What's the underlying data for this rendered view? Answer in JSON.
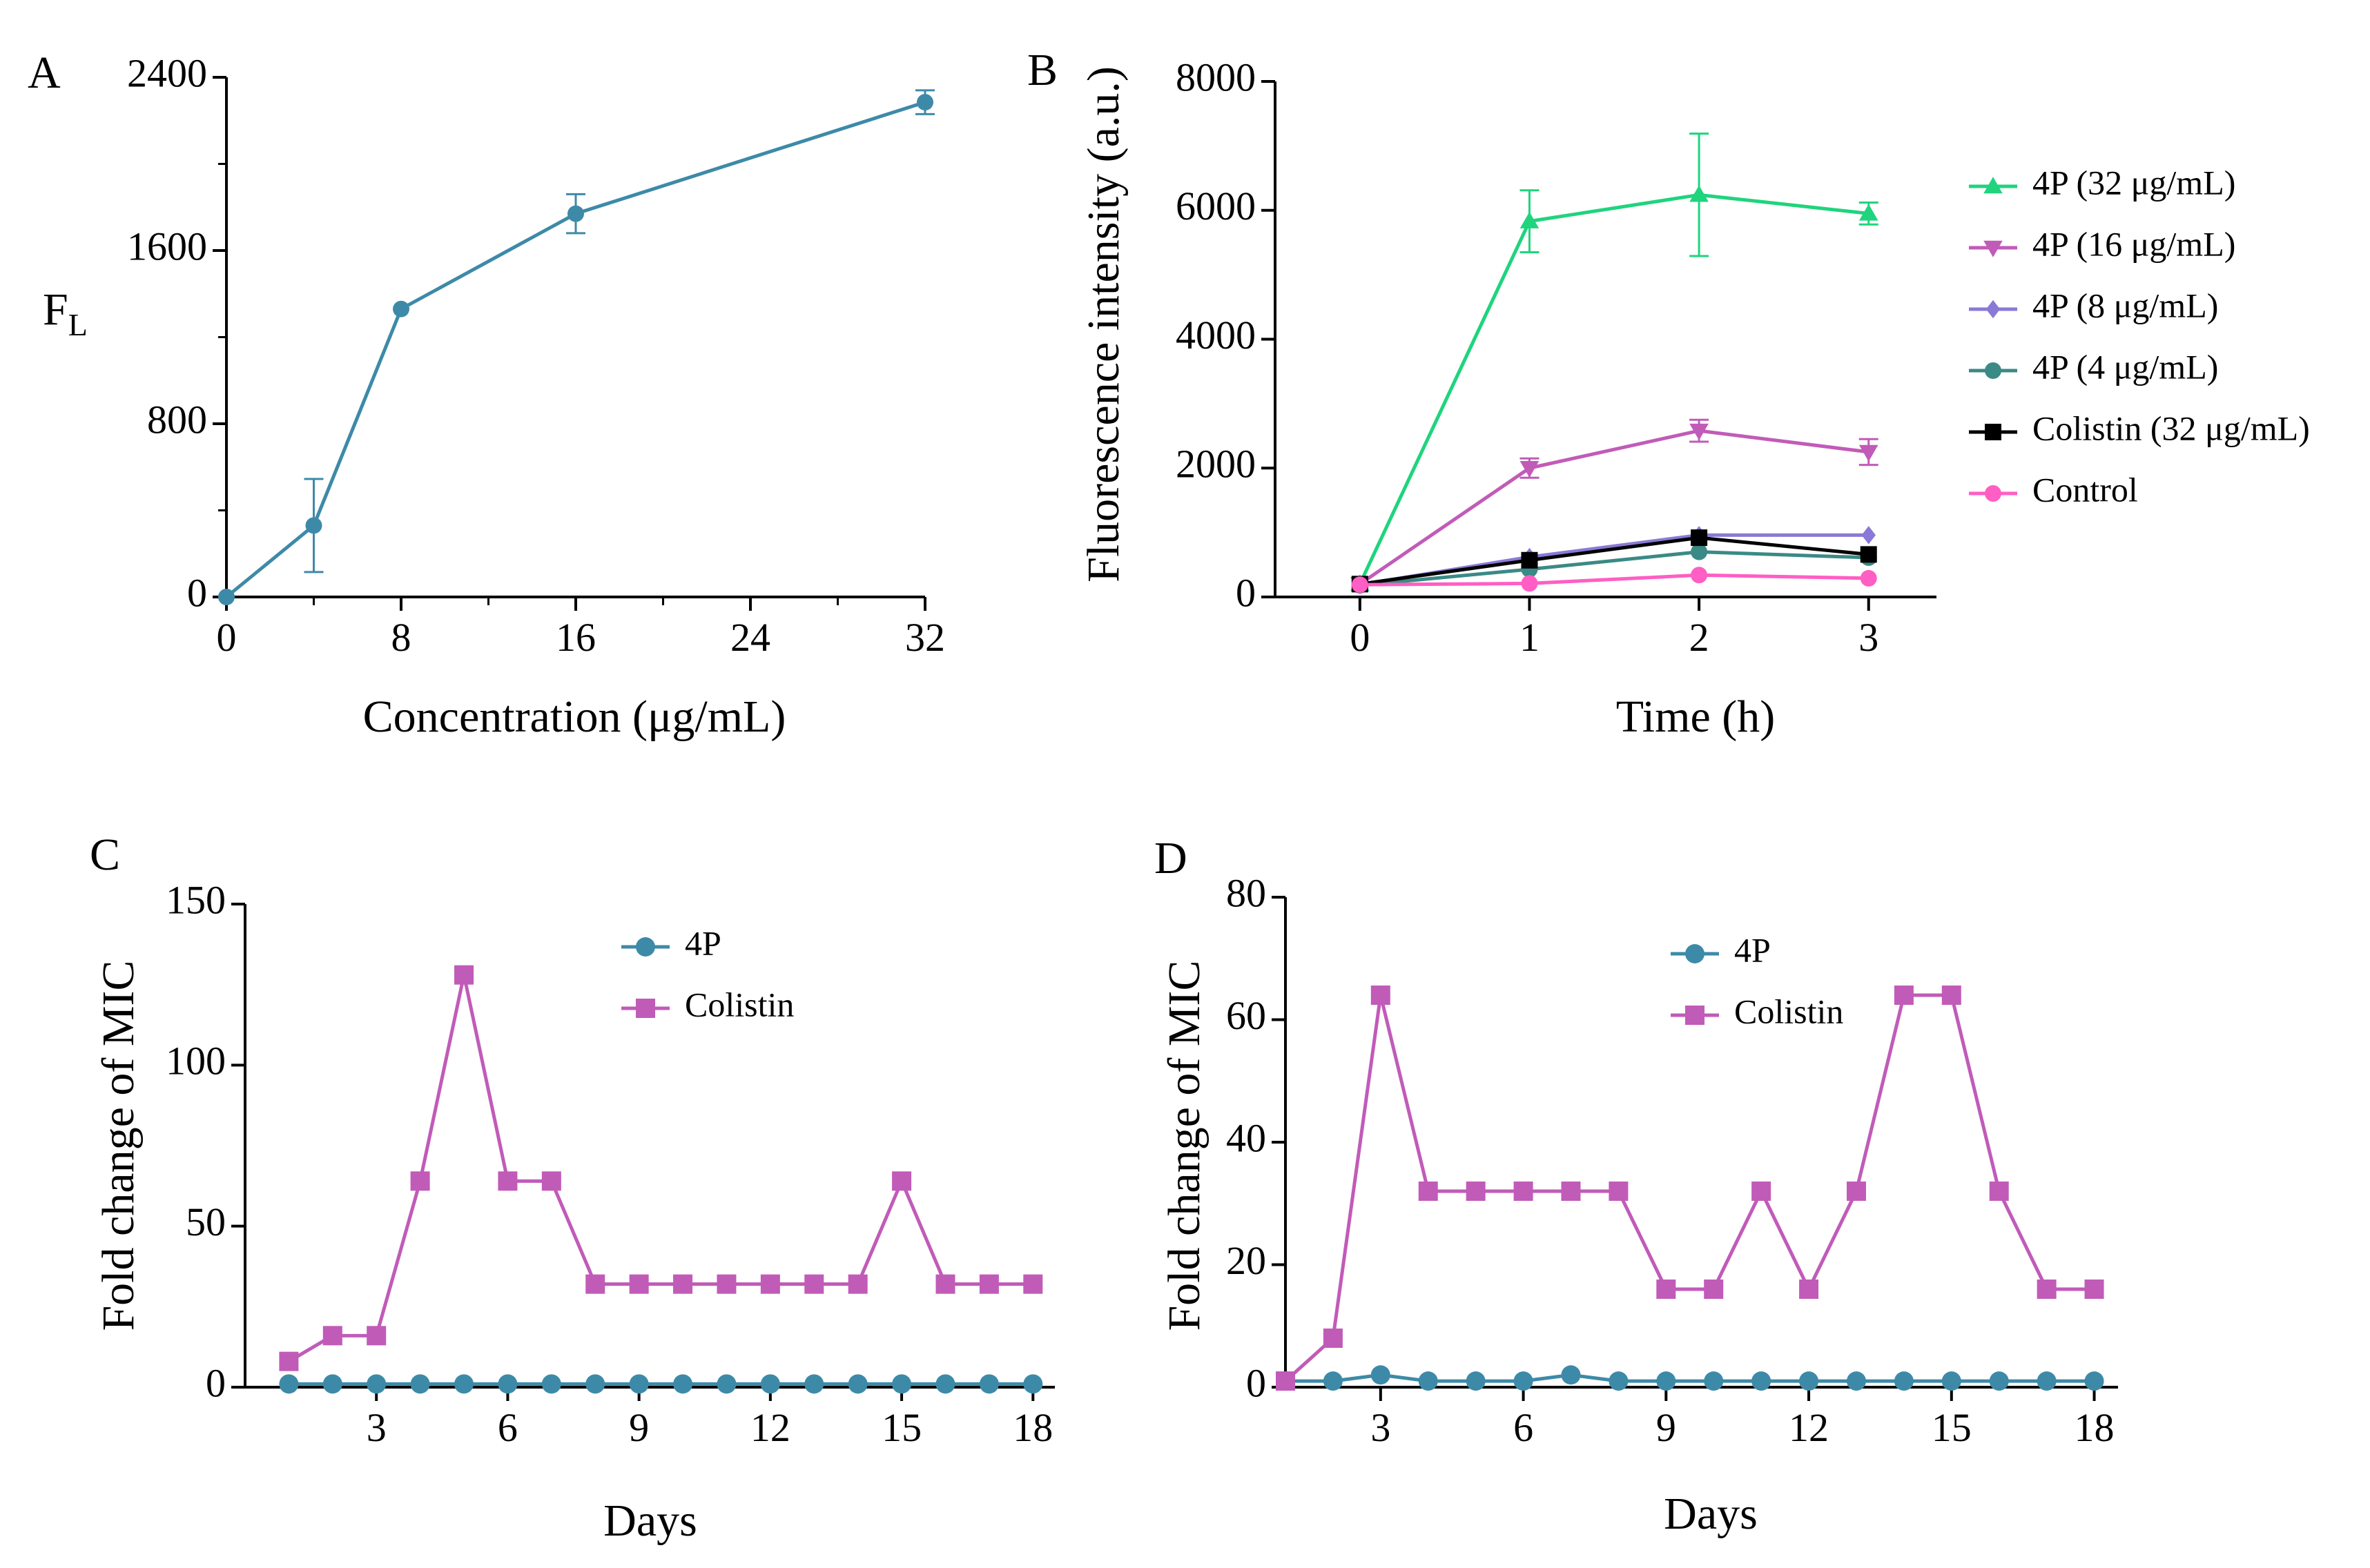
{
  "chart_data": [
    {
      "panel": "A",
      "type": "line",
      "xlabel": "Concentration (μg/mL)",
      "ylabel_main": "F",
      "ylabel_sub": "L",
      "xlim": [
        0,
        32
      ],
      "ylim": [
        0,
        2400
      ],
      "xticks": [
        0,
        8,
        16,
        24,
        32
      ],
      "xticks_minor": [
        4,
        12,
        20,
        28
      ],
      "yticks": [
        0,
        800,
        1600,
        2400
      ],
      "yticks_minor": [
        400,
        1200,
        2000
      ],
      "series": [
        {
          "name": "",
          "color": "#3d8aa8",
          "marker": "circle",
          "x": [
            0,
            4,
            8,
            16,
            32
          ],
          "y": [
            0,
            330,
            1330,
            1770,
            2285
          ],
          "err": [
            0,
            215,
            0,
            90,
            55
          ]
        }
      ]
    },
    {
      "panel": "B",
      "type": "line",
      "xlabel": "Time (h)",
      "ylabel": "Fluorescence intensity (a.u.)",
      "xlim": [
        -0.5,
        3.4
      ],
      "ylim": [
        0,
        8000
      ],
      "xticks": [
        0,
        1,
        2,
        3
      ],
      "yticks": [
        0,
        2000,
        4000,
        6000,
        8000
      ],
      "legend_position": "right",
      "series": [
        {
          "name": "4P (32 μg/mL)",
          "color": "#1fd47d",
          "marker": "triangle-up",
          "x": [
            0,
            1,
            2,
            3
          ],
          "y": [
            200,
            5830,
            6240,
            5950
          ],
          "err": [
            0,
            480,
            950,
            170
          ]
        },
        {
          "name": "4P (16 μg/mL)",
          "color": "#c15bb8",
          "marker": "triangle-down",
          "x": [
            0,
            1,
            2,
            3
          ],
          "y": [
            200,
            2000,
            2580,
            2250
          ],
          "err": [
            0,
            150,
            170,
            200
          ]
        },
        {
          "name": "4P (8 μg/mL)",
          "color": "#8a79d6",
          "marker": "diamond",
          "x": [
            0,
            1,
            2,
            3
          ],
          "y": [
            190,
            620,
            960,
            960
          ],
          "err": [
            0,
            0,
            0,
            0
          ]
        },
        {
          "name": "4P (4 μg/mL)",
          "color": "#3a8a86",
          "marker": "circle",
          "x": [
            0,
            1,
            2,
            3
          ],
          "y": [
            180,
            430,
            700,
            610
          ],
          "err": [
            0,
            0,
            0,
            0
          ]
        },
        {
          "name": "Colistin (32 μg/mL)",
          "color": "#000000",
          "marker": "square",
          "x": [
            0,
            1,
            2,
            3
          ],
          "y": [
            200,
            570,
            920,
            660
          ],
          "err": [
            0,
            0,
            0,
            0
          ]
        },
        {
          "name": "Control",
          "color": "#ff5ec4",
          "marker": "circle",
          "x": [
            0,
            1,
            2,
            3
          ],
          "y": [
            190,
            210,
            340,
            290
          ],
          "err": [
            0,
            0,
            0,
            0
          ]
        }
      ]
    },
    {
      "panel": "C",
      "type": "line",
      "xlabel": "Days",
      "ylabel": "Fold change of MIC",
      "xlim": [
        0,
        18.5
      ],
      "ylim": [
        0,
        150
      ],
      "xticks": [
        3,
        6,
        9,
        12,
        15,
        18
      ],
      "yticks": [
        0,
        50,
        100,
        150
      ],
      "legend_position": "top-center",
      "series": [
        {
          "name": "4P",
          "color": "#3d8aa8",
          "marker": "circle",
          "x": [
            1,
            2,
            3,
            4,
            5,
            6,
            7,
            8,
            9,
            10,
            11,
            12,
            13,
            14,
            15,
            16,
            17,
            18
          ],
          "y": [
            1,
            1,
            1,
            1,
            1,
            1,
            1,
            1,
            1,
            1,
            1,
            1,
            1,
            1,
            1,
            1,
            1,
            1
          ]
        },
        {
          "name": "Colistin",
          "color": "#c15bb8",
          "marker": "square",
          "x": [
            1,
            2,
            3,
            4,
            5,
            6,
            7,
            8,
            9,
            10,
            11,
            12,
            13,
            14,
            15,
            16,
            17,
            18
          ],
          "y": [
            8,
            16,
            16,
            64,
            128,
            64,
            64,
            32,
            32,
            32,
            32,
            32,
            32,
            32,
            64,
            32,
            32,
            32
          ]
        }
      ]
    },
    {
      "panel": "D",
      "type": "line",
      "xlabel": "Days",
      "ylabel": "Fold change of MIC",
      "xlim": [
        1,
        18.5
      ],
      "ylim": [
        0,
        80
      ],
      "xticks": [
        3,
        6,
        9,
        12,
        15,
        18
      ],
      "yticks": [
        0,
        20,
        40,
        60,
        80
      ],
      "legend_position": "top-center",
      "series": [
        {
          "name": "4P",
          "color": "#3d8aa8",
          "marker": "circle",
          "x": [
            1,
            2,
            3,
            4,
            5,
            6,
            7,
            8,
            9,
            10,
            11,
            12,
            13,
            14,
            15,
            16,
            17,
            18
          ],
          "y": [
            1,
            1,
            2,
            1,
            1,
            1,
            2,
            1,
            1,
            1,
            1,
            1,
            1,
            1,
            1,
            1,
            1,
            1
          ]
        },
        {
          "name": "Colistin",
          "color": "#c15bb8",
          "marker": "square",
          "x": [
            1,
            2,
            3,
            4,
            5,
            6,
            7,
            8,
            9,
            10,
            11,
            12,
            13,
            14,
            15,
            16,
            17,
            18
          ],
          "y": [
            1,
            8,
            64,
            32,
            32,
            32,
            32,
            32,
            16,
            16,
            32,
            16,
            32,
            64,
            64,
            32,
            16,
            16
          ]
        }
      ]
    }
  ]
}
